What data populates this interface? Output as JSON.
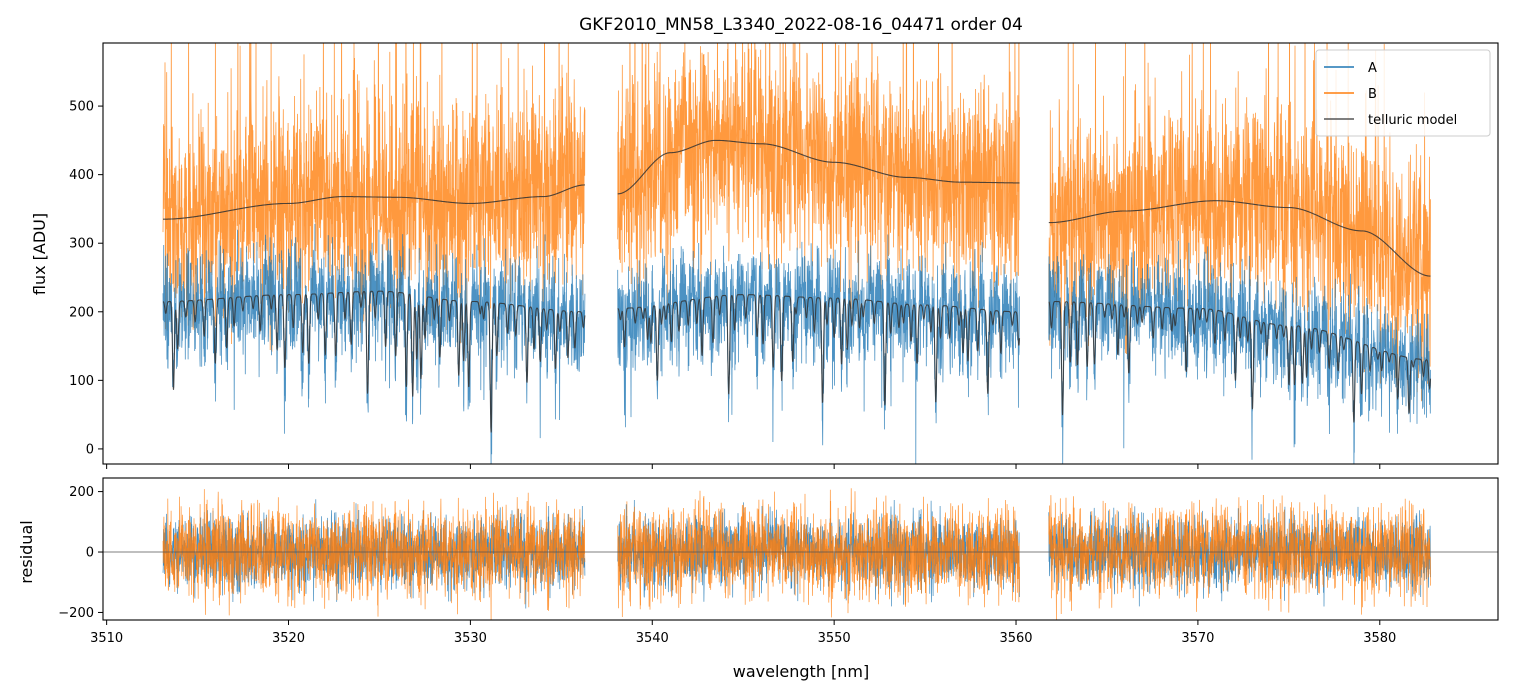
{
  "chart_data": [
    {
      "type": "line",
      "panel": "spectrum",
      "title": "GKF2010_MN58_L3340_2022-08-16_04471  order 04",
      "xlabel": "",
      "ylabel": "flux [ADU]",
      "xlim": [
        3509.8,
        3586.5
      ],
      "ylim": [
        -22,
        592
      ],
      "yticks": [
        0,
        100,
        200,
        300,
        400,
        500
      ],
      "xticks": [
        3510,
        3520,
        3530,
        3540,
        3550,
        3560,
        3570,
        3580
      ],
      "segments": [
        [
          3513.1,
          3536.3
        ],
        [
          3538.1,
          3560.2
        ],
        [
          3561.8,
          3582.8
        ]
      ],
      "series": [
        {
          "name": "A",
          "color": "#1f77b4",
          "approx_level": [
            [
              3513.1,
              215
            ],
            [
              3520,
              225
            ],
            [
              3525,
              230
            ],
            [
              3530,
              215
            ],
            [
              3536.3,
              200
            ],
            [
              3538.1,
              205
            ],
            [
              3545,
              225
            ],
            [
              3550,
              220
            ],
            [
              3555,
              210
            ],
            [
              3560.2,
              200
            ],
            [
              3561.8,
              215
            ],
            [
              3570,
              205
            ],
            [
              3575,
              180
            ],
            [
              3582.8,
              130
            ]
          ]
        },
        {
          "name": "B",
          "color": "#ff7f0e",
          "approx_level": [
            [
              3513.1,
              335
            ],
            [
              3523,
              368
            ],
            [
              3530,
              360
            ],
            [
              3536.3,
              385
            ],
            [
              3538.1,
              372
            ],
            [
              3543.5,
              450
            ],
            [
              3550,
              420
            ],
            [
              3555,
              392
            ],
            [
              3560.2,
              388
            ],
            [
              3561.8,
              330
            ],
            [
              3571,
              362
            ],
            [
              3577,
              338
            ],
            [
              3582.8,
              252
            ]
          ]
        },
        {
          "name": "telluric model",
          "color": "#333333",
          "approx_level": [
            [
              3513.1,
              335
            ],
            [
              3520,
              358
            ],
            [
              3523,
              368
            ],
            [
              3526,
              367
            ],
            [
              3530,
              358
            ],
            [
              3534,
              368
            ],
            [
              3536.3,
              385
            ],
            [
              3538.1,
              372
            ],
            [
              3541,
              432
            ],
            [
              3543.5,
              450
            ],
            [
              3546,
              445
            ],
            [
              3550,
              418
            ],
            [
              3554,
              396
            ],
            [
              3557,
              389
            ],
            [
              3560.2,
              388
            ],
            [
              3561.8,
              330
            ],
            [
              3566,
              347
            ],
            [
              3571,
              362
            ],
            [
              3575,
              352
            ],
            [
              3579,
              318
            ],
            [
              3582.8,
              252
            ]
          ]
        }
      ],
      "legend": {
        "labels": [
          "A",
          "B",
          "telluric model"
        ],
        "placement": "top-right"
      }
    },
    {
      "type": "line",
      "panel": "residual",
      "xlabel": "wavelength [nm]",
      "ylabel": "residual",
      "xlim": [
        3509.8,
        3586.5
      ],
      "ylim": [
        -225,
        245
      ],
      "yticks": [
        -200,
        0,
        200
      ],
      "xticks": [
        3510,
        3520,
        3530,
        3540,
        3550,
        3560,
        3570,
        3580
      ],
      "zero_line": 0,
      "series": [
        {
          "name": "A",
          "color": "#1f77b4",
          "approx_std": 60
        },
        {
          "name": "B",
          "color": "#ff7f0e",
          "approx_std": 75
        }
      ]
    }
  ],
  "colors": {
    "A": "#1f77b4",
    "B": "#ff7f0e",
    "model": "#333333"
  }
}
